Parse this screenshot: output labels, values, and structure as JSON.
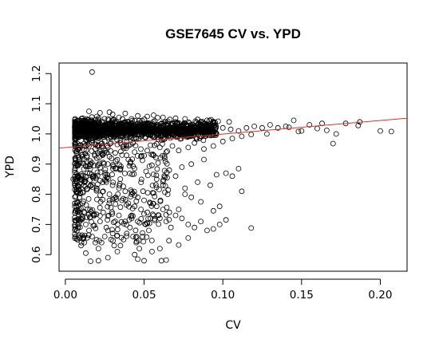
{
  "chart_data": {
    "type": "scatter",
    "title": "GSE7645 CV vs. YPD",
    "xlabel": "CV",
    "ylabel": "YPD",
    "xlim": [
      -0.004,
      0.217
    ],
    "ylim": [
      0.545,
      1.235
    ],
    "x_ticks": [
      0.0,
      0.05,
      0.1,
      0.15,
      0.2
    ],
    "x_tick_labels": [
      "0.00",
      "0.05",
      "0.10",
      "0.15",
      "0.20"
    ],
    "y_ticks": [
      0.6,
      0.7,
      0.8,
      0.9,
      1.0,
      1.1,
      1.2
    ],
    "y_tick_labels": [
      "0.6",
      "0.7",
      "0.8",
      "0.9",
      "1.0",
      "1.1",
      "1.2"
    ],
    "grid": false,
    "legend": "none",
    "marker": "open-circle",
    "point_color": "#000000",
    "fit_line": {
      "color": "#e0302a",
      "x": [
        -0.004,
        0.217
      ],
      "y": [
        0.953,
        1.052
      ]
    },
    "series": [
      {
        "points": [
          [
            0.017,
            1.205
          ],
          [
            0.015,
            1.075
          ],
          [
            0.022,
            1.07
          ],
          [
            0.028,
            1.072
          ],
          [
            0.03,
            1.065
          ],
          [
            0.038,
            1.068
          ],
          [
            0.046,
            1.06
          ],
          [
            0.052,
            1.058
          ],
          [
            0.056,
            1.062
          ],
          [
            0.062,
            1.055
          ],
          [
            0.07,
            1.052
          ],
          [
            0.076,
            1.05
          ],
          [
            0.084,
            1.048
          ],
          [
            0.09,
            1.045
          ],
          [
            0.097,
            1.042
          ],
          [
            0.104,
            1.04
          ],
          [
            0.011,
            1.052
          ],
          [
            0.02,
            1.058
          ],
          [
            0.034,
            1.055
          ],
          [
            0.042,
            1.05
          ],
          [
            0.006,
            1.03
          ],
          [
            0.008,
            1.01
          ],
          [
            0.009,
            0.99
          ],
          [
            0.01,
            1.005
          ],
          [
            0.012,
            1.02
          ],
          [
            0.014,
            1.035
          ],
          [
            0.016,
            1.045
          ],
          [
            0.018,
            1.0
          ],
          [
            0.02,
            1.025
          ],
          [
            0.024,
            1.04
          ],
          [
            0.026,
            1.015
          ],
          [
            0.03,
            1.03
          ],
          [
            0.034,
            1.01
          ],
          [
            0.038,
            1.04
          ],
          [
            0.042,
            1.02
          ],
          [
            0.046,
            1.035
          ],
          [
            0.05,
            1.015
          ],
          [
            0.055,
            1.03
          ],
          [
            0.06,
            1.02
          ],
          [
            0.065,
            1.035
          ],
          [
            0.07,
            1.015
          ],
          [
            0.075,
            1.03
          ],
          [
            0.08,
            1.02
          ],
          [
            0.085,
            1.025
          ],
          [
            0.09,
            1.015
          ],
          [
            0.095,
            1.03
          ],
          [
            0.1,
            1.02
          ],
          [
            0.105,
            1.015
          ],
          [
            0.11,
            1.01
          ],
          [
            0.115,
            1.02
          ],
          [
            0.12,
            1.025
          ],
          [
            0.125,
            1.02
          ],
          [
            0.13,
            1.03
          ],
          [
            0.135,
            1.02
          ],
          [
            0.14,
            1.025
          ],
          [
            0.145,
            1.045
          ],
          [
            0.15,
            1.01
          ],
          [
            0.155,
            1.03
          ],
          [
            0.163,
            1.035
          ],
          [
            0.172,
            1.0
          ],
          [
            0.178,
            1.035
          ],
          [
            0.186,
            1.028
          ],
          [
            0.187,
            1.04
          ],
          [
            0.2,
            1.01
          ],
          [
            0.207,
            1.008
          ],
          [
            0.17,
            0.968
          ],
          [
            0.16,
            1.018
          ],
          [
            0.166,
            1.012
          ],
          [
            0.142,
            1.022
          ],
          [
            0.148,
            1.008
          ],
          [
            0.128,
            1.0
          ],
          [
            0.118,
            0.998
          ],
          [
            0.112,
            0.992
          ],
          [
            0.106,
            0.985
          ],
          [
            0.1,
            0.975
          ],
          [
            0.094,
            0.96
          ],
          [
            0.088,
            0.95
          ],
          [
            0.082,
            0.97
          ],
          [
            0.078,
            0.955
          ],
          [
            0.072,
            0.945
          ],
          [
            0.068,
            0.96
          ],
          [
            0.064,
            0.94
          ],
          [
            0.06,
            0.955
          ],
          [
            0.056,
            0.93
          ],
          [
            0.052,
            0.945
          ],
          [
            0.048,
            0.925
          ],
          [
            0.044,
            0.94
          ],
          [
            0.04,
            0.915
          ],
          [
            0.036,
            0.93
          ],
          [
            0.032,
            0.91
          ],
          [
            0.028,
            0.925
          ],
          [
            0.024,
            0.905
          ],
          [
            0.02,
            0.92
          ],
          [
            0.016,
            0.9
          ],
          [
            0.012,
            0.915
          ],
          [
            0.008,
            0.895
          ],
          [
            0.006,
            0.88
          ],
          [
            0.008,
            0.86
          ],
          [
            0.01,
            0.84
          ],
          [
            0.012,
            0.85
          ],
          [
            0.014,
            0.87
          ],
          [
            0.016,
            0.83
          ],
          [
            0.018,
            0.86
          ],
          [
            0.02,
            0.82
          ],
          [
            0.022,
            0.845
          ],
          [
            0.024,
            0.81
          ],
          [
            0.026,
            0.84
          ],
          [
            0.028,
            0.8
          ],
          [
            0.03,
            0.83
          ],
          [
            0.032,
            0.79
          ],
          [
            0.034,
            0.82
          ],
          [
            0.036,
            0.78
          ],
          [
            0.038,
            0.81
          ],
          [
            0.04,
            0.77
          ],
          [
            0.042,
            0.8
          ],
          [
            0.044,
            0.76
          ],
          [
            0.046,
            0.79
          ],
          [
            0.048,
            0.75
          ],
          [
            0.05,
            0.78
          ],
          [
            0.052,
            0.74
          ],
          [
            0.054,
            0.77
          ],
          [
            0.056,
            0.73
          ],
          [
            0.058,
            0.76
          ],
          [
            0.06,
            0.72
          ],
          [
            0.062,
            0.75
          ],
          [
            0.064,
            0.71
          ],
          [
            0.066,
            0.74
          ],
          [
            0.07,
            0.73
          ],
          [
            0.074,
            0.72
          ],
          [
            0.078,
            0.7
          ],
          [
            0.082,
            0.69
          ],
          [
            0.086,
            0.71
          ],
          [
            0.09,
            0.68
          ],
          [
            0.094,
            0.685
          ],
          [
            0.098,
            0.7
          ],
          [
            0.102,
            0.715
          ],
          [
            0.007,
            0.76
          ],
          [
            0.009,
            0.74
          ],
          [
            0.011,
            0.72
          ],
          [
            0.013,
            0.7
          ],
          [
            0.015,
            0.68
          ],
          [
            0.017,
            0.66
          ],
          [
            0.019,
            0.64
          ],
          [
            0.021,
            0.62
          ],
          [
            0.023,
            0.64
          ],
          [
            0.025,
            0.66
          ],
          [
            0.027,
            0.68
          ],
          [
            0.029,
            0.65
          ],
          [
            0.031,
            0.63
          ],
          [
            0.033,
            0.61
          ],
          [
            0.035,
            0.63
          ],
          [
            0.037,
            0.65
          ],
          [
            0.039,
            0.67
          ],
          [
            0.041,
            0.69
          ],
          [
            0.043,
            0.66
          ],
          [
            0.045,
            0.64
          ],
          [
            0.047,
            0.62
          ],
          [
            0.049,
            0.66
          ],
          [
            0.051,
            0.7
          ],
          [
            0.053,
            0.68
          ],
          [
            0.013,
            0.605
          ],
          [
            0.016,
            0.578
          ],
          [
            0.021,
            0.58
          ],
          [
            0.027,
            0.59
          ],
          [
            0.046,
            0.585
          ],
          [
            0.05,
            0.58
          ],
          [
            0.061,
            0.58
          ],
          [
            0.064,
            0.582
          ],
          [
            0.072,
            0.632
          ],
          [
            0.078,
            0.655
          ],
          [
            0.06,
            0.62
          ],
          [
            0.055,
            0.61
          ],
          [
            0.044,
            0.6
          ],
          [
            0.012,
            0.64
          ],
          [
            0.008,
            0.7
          ],
          [
            0.01,
            0.63
          ],
          [
            0.106,
            0.86
          ],
          [
            0.11,
            0.885
          ],
          [
            0.102,
            0.87
          ],
          [
            0.096,
            0.865
          ],
          [
            0.084,
            0.84
          ],
          [
            0.118,
            0.688
          ],
          [
            0.092,
            0.83
          ],
          [
            0.076,
            0.82
          ],
          [
            0.07,
            0.86
          ],
          [
            0.066,
            0.88
          ],
          [
            0.08,
            0.9
          ],
          [
            0.088,
            0.915
          ],
          [
            0.074,
            0.89
          ],
          [
            0.062,
            0.83
          ],
          [
            0.058,
            0.85
          ],
          [
            0.112,
            0.81
          ],
          [
            0.098,
            0.76
          ],
          [
            0.094,
            0.745
          ],
          [
            0.086,
            0.775
          ],
          [
            0.08,
            0.79
          ],
          [
            0.076,
            0.8
          ],
          [
            0.065,
            0.8
          ],
          [
            0.072,
            0.75
          ],
          [
            0.067,
            0.69
          ],
          [
            0.013,
            0.98
          ],
          [
            0.015,
            0.96
          ],
          [
            0.017,
            0.97
          ],
          [
            0.019,
            0.95
          ],
          [
            0.021,
            0.985
          ],
          [
            0.023,
            0.96
          ],
          [
            0.025,
            0.975
          ],
          [
            0.027,
            0.955
          ],
          [
            0.029,
            0.97
          ],
          [
            0.031,
            0.99
          ],
          [
            0.033,
            0.965
          ],
          [
            0.035,
            0.98
          ],
          [
            0.037,
            0.96
          ],
          [
            0.039,
            0.975
          ],
          [
            0.041,
            0.99
          ],
          [
            0.043,
            0.97
          ],
          [
            0.005,
            0.85
          ],
          [
            0.006,
            0.83
          ],
          [
            0.007,
            0.81
          ],
          [
            0.009,
            0.79
          ],
          [
            0.011,
            0.77
          ],
          [
            0.014,
            0.75
          ],
          [
            0.018,
            0.73
          ],
          [
            0.022,
            0.71
          ],
          [
            0.026,
            0.69
          ],
          [
            0.03,
            0.67
          ],
          [
            0.034,
            0.73
          ],
          [
            0.038,
            0.71
          ],
          [
            0.042,
            0.73
          ],
          [
            0.046,
            0.71
          ],
          [
            0.05,
            0.735
          ],
          [
            0.054,
            0.72
          ]
        ]
      }
    ]
  }
}
